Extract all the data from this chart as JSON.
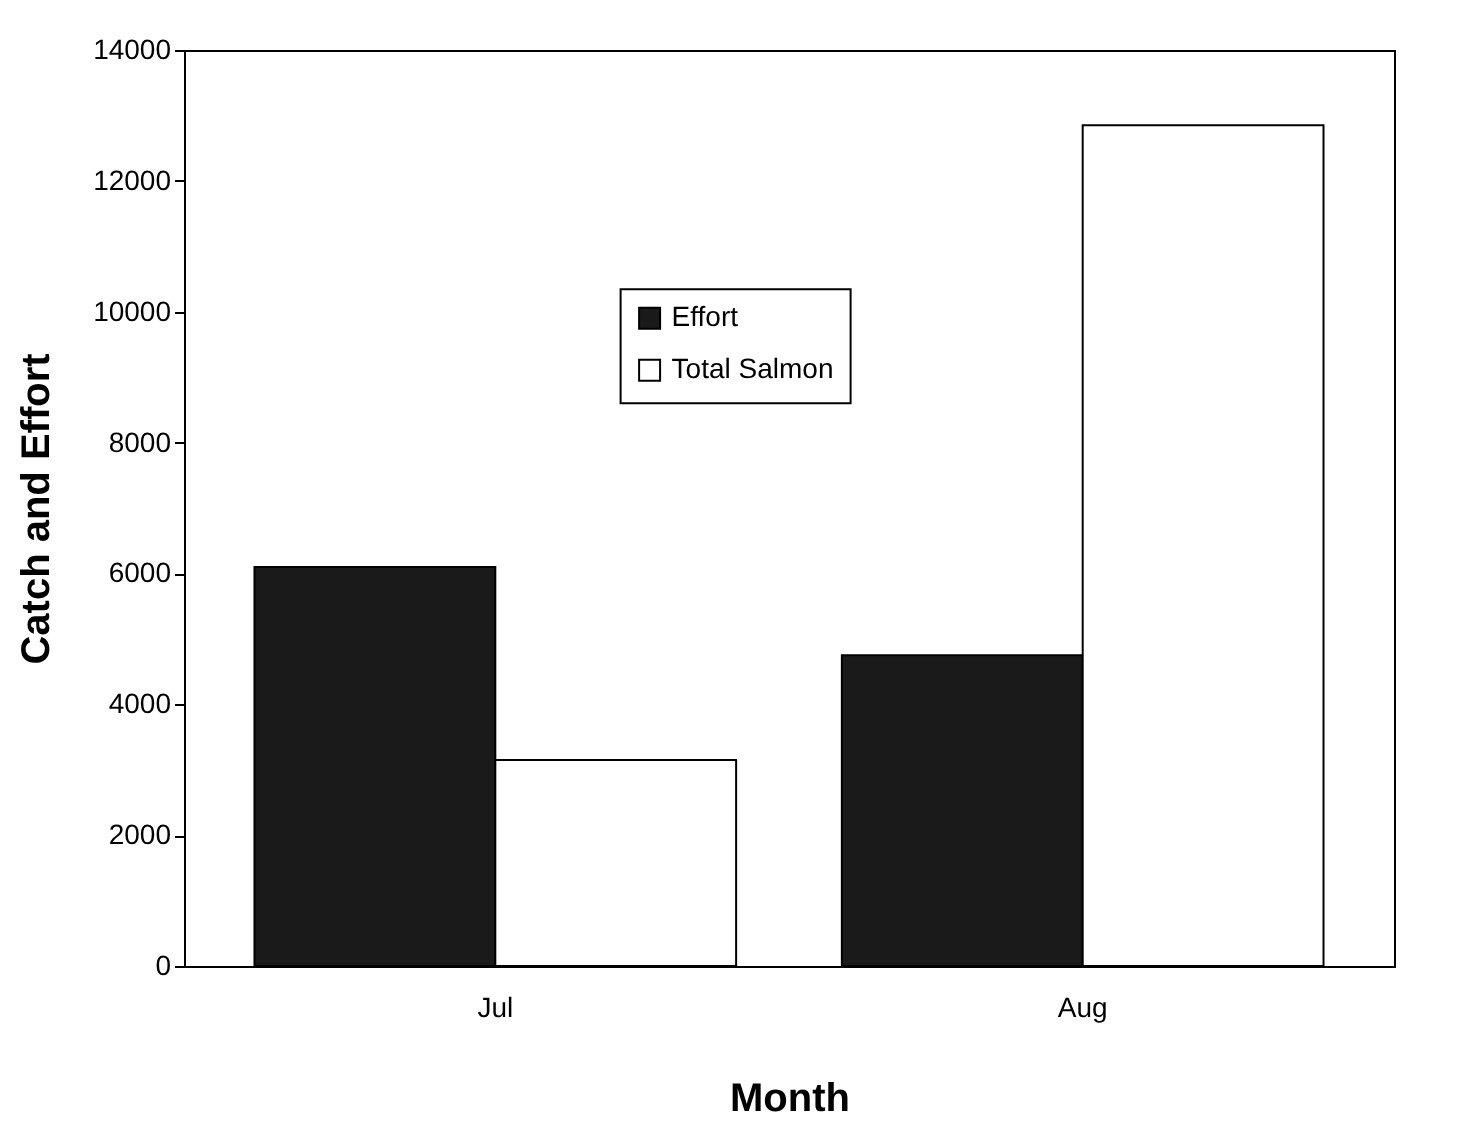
{
  "chart_data": {
    "type": "bar",
    "xlabel": "Month",
    "ylabel": "Catch and Effort",
    "categories": [
      "Jul",
      "Aug"
    ],
    "series": [
      {
        "name": "Effort",
        "color": "#1a1a1a",
        "values": [
          6100,
          4750
        ]
      },
      {
        "name": "Total Salmon",
        "color": "#ffffff",
        "values": [
          3150,
          12850
        ]
      }
    ],
    "ylim": [
      0,
      14000
    ],
    "yticks": [
      0,
      2000,
      4000,
      6000,
      8000,
      10000,
      12000,
      14000
    ],
    "grid": false,
    "legend": "top"
  }
}
